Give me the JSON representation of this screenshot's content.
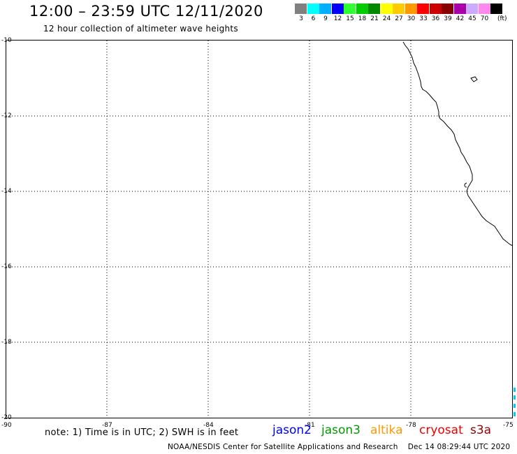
{
  "header": {
    "title": "12:00 – 23:59 UTC 12/11/2020",
    "subtitle": "12 hour collection of altimeter wave heights"
  },
  "legend_scale": {
    "unit": "(ft)",
    "bins": [
      {
        "label": "3",
        "color": "#808080"
      },
      {
        "label": "6",
        "color": "#00ffff"
      },
      {
        "label": "9",
        "color": "#00b0ff"
      },
      {
        "label": "12",
        "color": "#0000ff"
      },
      {
        "label": "15",
        "color": "#30ff30"
      },
      {
        "label": "18",
        "color": "#00cc00"
      },
      {
        "label": "21",
        "color": "#008800"
      },
      {
        "label": "24",
        "color": "#ffff00"
      },
      {
        "label": "27",
        "color": "#ffcc00"
      },
      {
        "label": "30",
        "color": "#ff9900"
      },
      {
        "label": "33",
        "color": "#ff0000"
      },
      {
        "label": "36",
        "color": "#cc0000"
      },
      {
        "label": "39",
        "color": "#880000"
      },
      {
        "label": "42",
        "color": "#aa00aa"
      },
      {
        "label": "45",
        "color": "#ccaaff"
      },
      {
        "label": "70",
        "color": "#ff88ee"
      },
      {
        "label": "",
        "color": "#000000"
      }
    ]
  },
  "axes": {
    "latitudes": [
      "-10",
      "-12",
      "-14",
      "-16",
      "-18",
      "-20"
    ],
    "longitudes": [
      "-90",
      "-87",
      "-84",
      "-81",
      "-78",
      "-75"
    ]
  },
  "footer": {
    "note": "note: 1) Time is in UTC; 2) SWH is in feet",
    "satellites": [
      {
        "name": "jason2",
        "color": "#0000ff"
      },
      {
        "name": "jason3",
        "color": "#009900"
      },
      {
        "name": "altika",
        "color": "#ff9900"
      },
      {
        "name": "cryosat",
        "color": "#ee0000"
      },
      {
        "name": "s3a",
        "color": "#990000"
      }
    ],
    "credit": "NOAA/NESDIS Center for Satellite Applications and Research    Dec 14 08:29:44 UTC 2020"
  },
  "colors": {
    "land_line": "#000000",
    "grid": "#000000",
    "edge_marks": "#00ccff"
  }
}
